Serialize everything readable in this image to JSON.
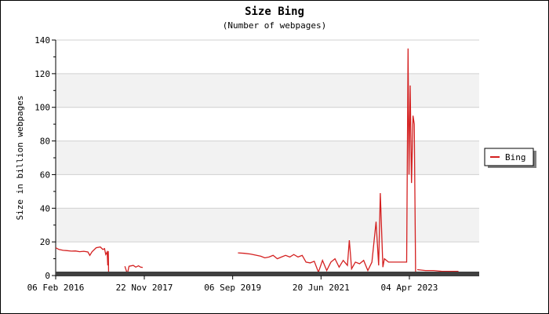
{
  "chart_data": {
    "type": "line",
    "title": "Size Bing",
    "subtitle": "(Number of webpages)",
    "xlabel": "",
    "ylabel": "Size in billion webpages",
    "ylim": [
      0,
      140
    ],
    "yticks": [
      0,
      20,
      40,
      60,
      80,
      100,
      120,
      140
    ],
    "xlim": [
      "2016-02-06",
      "2024-09-01"
    ],
    "xticks": [
      "2016-02-06",
      "2017-11-22",
      "2019-09-06",
      "2021-06-20",
      "2023-04-04"
    ],
    "xtick_labels": [
      "06 Feb 2016",
      "22 Nov 2017",
      "06 Sep 2019",
      "20 Jun 2021",
      "04 Apr 2023"
    ],
    "grid": "horizontal bands",
    "legend_position": "right",
    "colors": {
      "series": "#d42020",
      "band": "#f2f2f2",
      "floor": "#404040"
    },
    "series": [
      {
        "name": "Bing",
        "segments": [
          [
            [
              "2016-02-06",
              16.5
            ],
            [
              "2016-03-01",
              15.5
            ],
            [
              "2016-04-01",
              15.0
            ],
            [
              "2016-05-01",
              14.8
            ],
            [
              "2016-06-01",
              14.5
            ],
            [
              "2016-07-01",
              14.6
            ],
            [
              "2016-08-01",
              14.2
            ],
            [
              "2016-09-01",
              14.4
            ],
            [
              "2016-10-01",
              14.0
            ],
            [
              "2016-10-15",
              12.0
            ],
            [
              "2016-11-01",
              14.2
            ],
            [
              "2016-12-01",
              16.5
            ],
            [
              "2017-01-01",
              17.0
            ],
            [
              "2017-01-20",
              15.5
            ],
            [
              "2017-02-01",
              16.0
            ],
            [
              "2017-02-10",
              12.5
            ],
            [
              "2017-02-20",
              14.0
            ],
            [
              "2017-02-25",
              6.0
            ],
            [
              "2017-03-01",
              14.5
            ],
            [
              "2017-03-03",
              0.5
            ]
          ],
          [
            [
              "2017-07-01",
              5.5
            ],
            [
              "2017-07-20",
              1.0
            ],
            [
              "2017-08-01",
              5.5
            ],
            [
              "2017-09-01",
              6.0
            ],
            [
              "2017-09-20",
              5.0
            ],
            [
              "2017-10-10",
              5.8
            ],
            [
              "2017-10-25",
              5.0
            ],
            [
              "2017-11-10",
              4.8
            ]
          ],
          [
            [
              "2019-10-15",
              13.5
            ],
            [
              "2019-12-01",
              13.2
            ],
            [
              "2020-01-15",
              12.8
            ],
            [
              "2020-03-01",
              12.0
            ],
            [
              "2020-04-01",
              11.5
            ],
            [
              "2020-05-01",
              10.5
            ],
            [
              "2020-06-01",
              11.0
            ],
            [
              "2020-07-01",
              12.0
            ],
            [
              "2020-08-01",
              10.0
            ],
            [
              "2020-09-01",
              11.0
            ],
            [
              "2020-10-01",
              12.0
            ],
            [
              "2020-11-01",
              11.0
            ],
            [
              "2020-12-01",
              12.5
            ],
            [
              "2021-01-01",
              11.0
            ],
            [
              "2021-02-01",
              12.0
            ],
            [
              "2021-03-01",
              8.0
            ],
            [
              "2021-04-01",
              7.5
            ],
            [
              "2021-05-01",
              8.5
            ],
            [
              "2021-06-01",
              2.0
            ],
            [
              "2021-07-01",
              9.0
            ],
            [
              "2021-08-01",
              3.0
            ],
            [
              "2021-09-01",
              8.0
            ],
            [
              "2021-10-01",
              10.0
            ],
            [
              "2021-11-01",
              5.0
            ],
            [
              "2021-12-01",
              9.0
            ],
            [
              "2022-01-01",
              6.0
            ],
            [
              "2022-01-15",
              21.0
            ],
            [
              "2022-02-01",
              4.0
            ],
            [
              "2022-03-01",
              8.0
            ],
            [
              "2022-04-01",
              7.0
            ],
            [
              "2022-05-01",
              9.0
            ],
            [
              "2022-06-01",
              3.0
            ],
            [
              "2022-07-01",
              8.0
            ],
            [
              "2022-08-01",
              32.0
            ],
            [
              "2022-08-20",
              6.0
            ],
            [
              "2022-09-01",
              49.0
            ],
            [
              "2022-09-20",
              5.0
            ],
            [
              "2022-10-01",
              10.0
            ],
            [
              "2022-11-01",
              8.0
            ],
            [
              "2022-12-01",
              8.0
            ],
            [
              "2023-01-01",
              8.0
            ],
            [
              "2023-02-01",
              8.0
            ],
            [
              "2023-03-15",
              8.0
            ],
            [
              "2023-03-25",
              135.0
            ],
            [
              "2023-04-01",
              60.0
            ],
            [
              "2023-04-10",
              113.0
            ],
            [
              "2023-04-20",
              55.0
            ],
            [
              "2023-05-01",
              95.0
            ],
            [
              "2023-05-10",
              90.0
            ],
            [
              "2023-05-20",
              2.0
            ]
          ],
          [
            [
              "2023-06-01",
              3.5
            ],
            [
              "2023-08-01",
              3.0
            ],
            [
              "2023-10-01",
              3.0
            ],
            [
              "2023-12-01",
              2.5
            ],
            [
              "2024-02-01",
              2.5
            ],
            [
              "2024-04-01",
              2.5
            ]
          ]
        ]
      }
    ]
  }
}
